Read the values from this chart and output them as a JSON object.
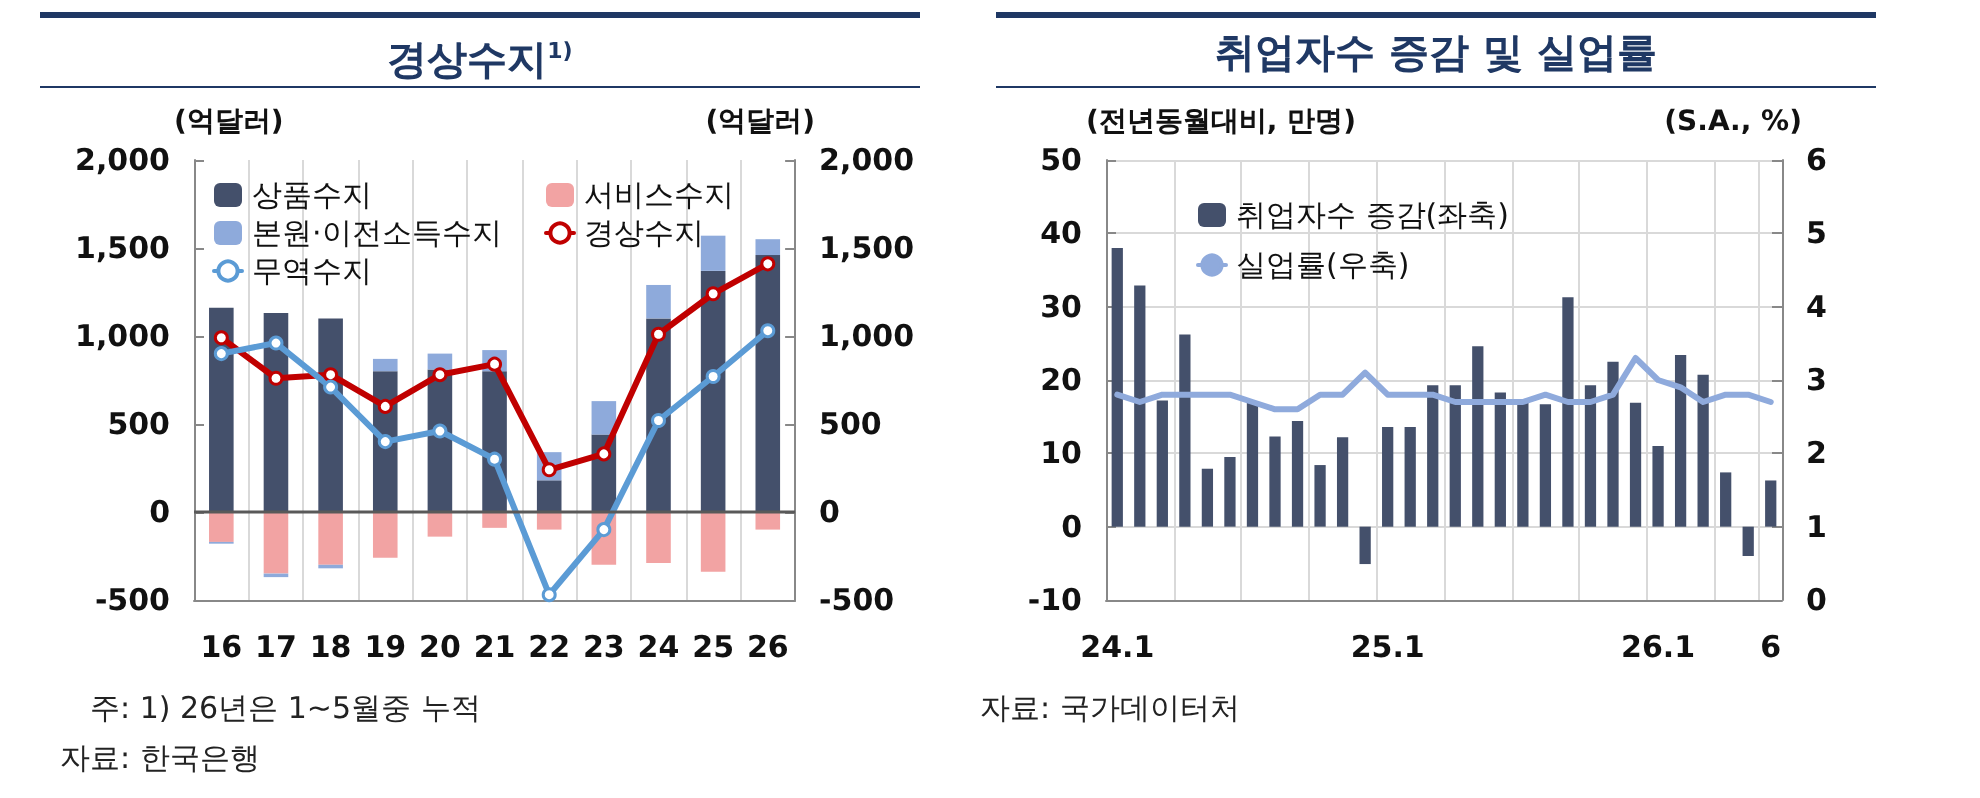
{
  "chart_data": [
    {
      "type": "bar",
      "title": "경상수지$^{1)}$",
      "ylabel": "(억달러)",
      "y2label": "(억달러)",
      "categories": [
        "16",
        "17",
        "18",
        "19",
        "20",
        "21",
        "22",
        "23",
        "24",
        "25",
        "26"
      ],
      "stacked": true,
      "series": [
        {
          "name": "상품수지",
          "color": "#44506b",
          "values": [
            1160,
            1130,
            1100,
            800,
            810,
            800,
            180,
            440,
            1100,
            1370,
            1460
          ]
        },
        {
          "name": "서비스수지",
          "color": "#f2a3a3",
          "values": [
            -170,
            -350,
            -300,
            -260,
            -140,
            -90,
            -100,
            -300,
            -290,
            -340,
            -100
          ]
        },
        {
          "name": "본원·이전소득수지",
          "color": "#8eaadb",
          "values": [
            -10,
            -20,
            -20,
            70,
            90,
            120,
            160,
            190,
            190,
            200,
            90
          ]
        },
        {
          "name": "경상수지",
          "type": "line",
          "color": "#c00000",
          "marker": "circle",
          "values": [
            990,
            760,
            780,
            600,
            780,
            840,
            240,
            330,
            1010,
            1240,
            1410
          ]
        },
        {
          "name": "무역수지",
          "type": "line",
          "color": "#5b9bd5",
          "marker": "circle",
          "values": [
            900,
            960,
            710,
            400,
            460,
            300,
            -470,
            -100,
            520,
            770,
            1030
          ]
        }
      ],
      "ylim": [
        -500,
        2000
      ],
      "yticks": [
        -500,
        0,
        500,
        {
          "value": 1000,
          "label": "1,000"
        },
        {
          "value": 1500,
          "label": "1,500"
        },
        {
          "value": 2000,
          "label": "2,000"
        }
      ],
      "y2lim": [
        -500,
        2000
      ],
      "y2ticks": [
        -500,
        0,
        500,
        {
          "value": 1000,
          "label": "1,000"
        },
        {
          "value": 1500,
          "label": "1,500"
        },
        {
          "value": 2000,
          "label": "2,000"
        }
      ],
      "ref_lines": [
        {
          "axis": "y",
          "value": 0,
          "color": "#595959"
        }
      ],
      "grid": "x",
      "legend": "top left",
      "annotations": [
        "주: 1) 26년은 1~5월중 누적",
        "자료: 한국은행"
      ]
    },
    {
      "type": "bar",
      "title": "취업자수 증감 및 실업률",
      "ylabel": "(전년동월대비, 만명)",
      "y2label": "(S.A., %)",
      "categories": [
        "24.1",
        null,
        null,
        null,
        null,
        null,
        null,
        null,
        null,
        null,
        null,
        null,
        "25.1",
        null,
        null,
        null,
        null,
        null,
        null,
        null,
        null,
        null,
        null,
        null,
        "26.1",
        null,
        null,
        null,
        null,
        "6"
      ],
      "series": [
        {
          "name": "취업자수 증감(좌축)",
          "color": "#44506b",
          "values": [
            38.0,
            32.9,
            17.2,
            26.2,
            7.9,
            9.5,
            16.9,
            12.3,
            14.4,
            8.4,
            12.2,
            -5.1,
            13.6,
            13.6,
            19.3,
            19.3,
            24.6,
            18.3,
            17.1,
            16.7,
            31.3,
            19.3,
            22.5,
            16.9,
            11.0,
            23.4,
            20.7,
            7.4,
            -4.0,
            6.3
          ]
        },
        {
          "name": "실업률(우축)",
          "type": "line",
          "axis": "y2",
          "color": "#8faadc",
          "marker": "none",
          "values": [
            2.8,
            2.7,
            2.8,
            2.8,
            2.8,
            2.8,
            2.7,
            2.6,
            2.6,
            2.8,
            2.8,
            3.1,
            2.8,
            2.8,
            2.8,
            2.7,
            2.7,
            2.7,
            2.7,
            2.8,
            2.7,
            2.7,
            2.8,
            3.3,
            3.0,
            2.9,
            2.7,
            2.8,
            2.8,
            2.7
          ]
        }
      ],
      "ylim": [
        -10,
        50
      ],
      "yticks": [
        -10,
        0,
        10,
        20,
        30,
        40,
        50
      ],
      "y2lim": [
        0,
        6
      ],
      "y2ticks": [
        0,
        1,
        2,
        3,
        4,
        5,
        6
      ],
      "grid": true,
      "legend": "top left",
      "annotations": [
        "자료: 국가데이터처"
      ]
    }
  ]
}
